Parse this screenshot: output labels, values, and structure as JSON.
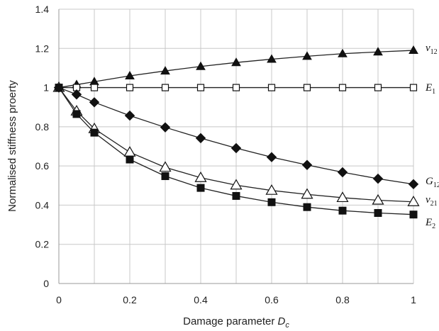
{
  "chart_data": {
    "type": "line",
    "title": "",
    "xlabel": {
      "main": "Damage parameter ",
      "var": "D",
      "sub": "c"
    },
    "ylabel": "Normalised stiffness proerty",
    "xlim": [
      0,
      1
    ],
    "ylim": [
      0,
      1.4
    ],
    "xticks": [
      "0",
      "0.2",
      "0.4",
      "0.6",
      "0.8",
      "1"
    ],
    "yticks": [
      "0",
      "0.2",
      "0.4",
      "0.6",
      "0.8",
      "1",
      "1.2",
      "1.4"
    ],
    "grid": "vertical and horizontal",
    "legend": "none (series labelled at right end of lines)",
    "series": [
      {
        "name": "v12",
        "label_main": "ν",
        "label_sub": "12",
        "marker": "filled-triangle",
        "x": [
          0,
          0.05,
          0.1,
          0.2,
          0.3,
          0.4,
          0.5,
          0.6,
          0.7,
          0.8,
          0.9,
          1.0
        ],
        "y": [
          1.0,
          1.015,
          1.03,
          1.06,
          1.085,
          1.108,
          1.128,
          1.145,
          1.16,
          1.173,
          1.182,
          1.19
        ]
      },
      {
        "name": "E1",
        "label_main": "E",
        "label_sub": "1",
        "marker": "open-square",
        "x": [
          0,
          0.05,
          0.1,
          0.2,
          0.3,
          0.4,
          0.5,
          0.6,
          0.7,
          0.8,
          0.9,
          1.0
        ],
        "y": [
          1.0,
          1.0,
          1.0,
          1.0,
          1.0,
          1.0,
          1.0,
          1.0,
          1.0,
          1.0,
          1.0,
          1.0
        ]
      },
      {
        "name": "G12",
        "label_main": "G",
        "label_sub": "12",
        "marker": "filled-diamond",
        "x": [
          0,
          0.05,
          0.1,
          0.2,
          0.3,
          0.4,
          0.5,
          0.6,
          0.7,
          0.8,
          0.9,
          1.0
        ],
        "y": [
          1.0,
          0.965,
          0.925,
          0.857,
          0.797,
          0.742,
          0.691,
          0.645,
          0.605,
          0.568,
          0.535,
          0.507
        ]
      },
      {
        "name": "v21",
        "label_main": "ν",
        "label_sub": "21",
        "marker": "open-triangle",
        "x": [
          0,
          0.05,
          0.1,
          0.2,
          0.3,
          0.4,
          0.5,
          0.6,
          0.7,
          0.8,
          0.9,
          1.0
        ],
        "y": [
          1.0,
          0.88,
          0.79,
          0.67,
          0.593,
          0.54,
          0.502,
          0.475,
          0.455,
          0.438,
          0.425,
          0.417
        ]
      },
      {
        "name": "E2",
        "label_main": "E",
        "label_sub": "2",
        "marker": "filled-square",
        "x": [
          0,
          0.05,
          0.1,
          0.2,
          0.3,
          0.4,
          0.5,
          0.6,
          0.7,
          0.8,
          0.9,
          1.0
        ],
        "y": [
          1.0,
          0.865,
          0.77,
          0.633,
          0.548,
          0.488,
          0.447,
          0.415,
          0.39,
          0.372,
          0.36,
          0.352
        ]
      }
    ]
  }
}
